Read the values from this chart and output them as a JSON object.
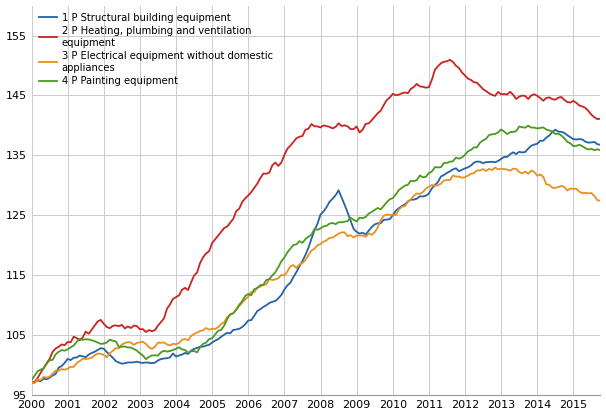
{
  "title": "",
  "colors": {
    "blue": "#2563a8",
    "red": "#cc2222",
    "orange": "#e89020",
    "green": "#4a9a20"
  },
  "legend": [
    "1 P Structural building equipment",
    "2 P Heating, plumbing and ventilation\nequipment",
    "3 P Electrical equipment without domestic\nappliances",
    "4 P Painting equipment"
  ],
  "ylim": [
    95,
    160
  ],
  "yticks": [
    95,
    105,
    115,
    125,
    135,
    145,
    155
  ],
  "xlim": [
    2000.0,
    2015.75
  ],
  "xticks": [
    2000,
    2001,
    2002,
    2003,
    2004,
    2005,
    2006,
    2007,
    2008,
    2009,
    2010,
    2011,
    2012,
    2013,
    2014,
    2015
  ],
  "grid_color": "#cccccc",
  "background": "#ffffff",
  "linewidth": 1.3
}
